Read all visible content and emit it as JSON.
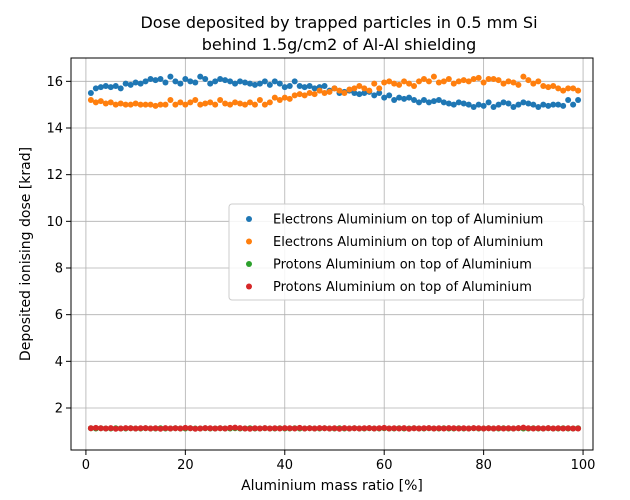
{
  "chart_data": {
    "type": "scatter",
    "title": [
      "Dose deposited by trapped particles in 0.5 mm Si",
      "behind 1.5g/cm2 of Al-Al shielding"
    ],
    "xlabel": "Aluminium mass ratio [%]",
    "ylabel": "Deposited ionising dose [krad]",
    "xlim": [
      -3,
      102
    ],
    "ylim": [
      0.2,
      17
    ],
    "xticks": [
      "0",
      "20",
      "40",
      "60",
      "80",
      "100"
    ],
    "yticks": [
      "2",
      "4",
      "6",
      "8",
      "10",
      "12",
      "14",
      "16"
    ],
    "grid": true,
    "legend_position": "center-right",
    "x": [
      1,
      2,
      3,
      4,
      5,
      6,
      7,
      8,
      9,
      10,
      11,
      12,
      13,
      14,
      15,
      16,
      17,
      18,
      19,
      20,
      21,
      22,
      23,
      24,
      25,
      26,
      27,
      28,
      29,
      30,
      31,
      32,
      33,
      34,
      35,
      36,
      37,
      38,
      39,
      40,
      41,
      42,
      43,
      44,
      45,
      46,
      47,
      48,
      49,
      50,
      51,
      52,
      53,
      54,
      55,
      56,
      57,
      58,
      59,
      60,
      61,
      62,
      63,
      64,
      65,
      66,
      67,
      68,
      69,
      70,
      71,
      72,
      73,
      74,
      75,
      76,
      77,
      78,
      79,
      80,
      81,
      82,
      83,
      84,
      85,
      86,
      87,
      88,
      89,
      90,
      91,
      92,
      93,
      94,
      95,
      96,
      97,
      98,
      99
    ],
    "series": [
      {
        "name": "Electrons Aluminium on top of Aluminium",
        "color": "#1f77b4",
        "values": [
          15.5,
          15.7,
          15.75,
          15.8,
          15.75,
          15.8,
          15.7,
          15.9,
          15.85,
          15.95,
          15.9,
          16.0,
          16.1,
          16.05,
          16.1,
          15.95,
          16.2,
          16.0,
          15.9,
          16.1,
          16.0,
          15.95,
          16.2,
          16.1,
          15.9,
          16.0,
          16.1,
          16.05,
          16.0,
          15.9,
          16.0,
          15.95,
          15.9,
          15.85,
          15.9,
          16.0,
          15.85,
          16.0,
          15.9,
          15.75,
          15.8,
          16.0,
          15.8,
          15.75,
          15.8,
          15.7,
          15.75,
          15.8,
          15.6,
          15.7,
          15.5,
          15.55,
          15.6,
          15.5,
          15.45,
          15.5,
          15.55,
          15.4,
          15.5,
          15.3,
          15.4,
          15.2,
          15.3,
          15.25,
          15.3,
          15.2,
          15.1,
          15.2,
          15.1,
          15.15,
          15.2,
          15.1,
          15.05,
          15.0,
          15.1,
          15.05,
          15.0,
          14.9,
          15.0,
          14.95,
          15.1,
          14.9,
          15.0,
          15.1,
          15.05,
          14.9,
          15.0,
          15.1,
          15.05,
          15.0,
          14.9,
          15.0,
          14.95,
          15.0,
          15.0,
          14.95,
          15.2,
          15.0,
          15.2
        ]
      },
      {
        "name": "Electrons Aluminium on top of Aluminium",
        "color": "#ff7f0e",
        "values": [
          15.2,
          15.1,
          15.15,
          15.05,
          15.1,
          15.0,
          15.05,
          15.0,
          15.0,
          15.05,
          15.0,
          15.0,
          15.0,
          14.95,
          15.0,
          15.0,
          15.2,
          15.0,
          15.1,
          15.0,
          15.1,
          15.2,
          15.0,
          15.05,
          15.1,
          15.0,
          15.2,
          15.05,
          15.0,
          15.1,
          15.05,
          15.0,
          15.1,
          15.0,
          15.2,
          15.0,
          15.1,
          15.3,
          15.2,
          15.3,
          15.25,
          15.4,
          15.45,
          15.4,
          15.5,
          15.45,
          15.6,
          15.5,
          15.55,
          15.7,
          15.6,
          15.5,
          15.65,
          15.7,
          15.8,
          15.7,
          15.6,
          15.9,
          15.7,
          15.95,
          16.0,
          15.9,
          15.85,
          16.0,
          15.9,
          15.8,
          16.0,
          16.1,
          16.0,
          16.2,
          15.95,
          16.0,
          16.1,
          15.9,
          16.0,
          16.05,
          16.0,
          16.1,
          16.15,
          15.95,
          16.1,
          16.1,
          16.05,
          15.9,
          16.0,
          15.95,
          15.85,
          16.2,
          16.05,
          15.9,
          16.0,
          15.8,
          15.75,
          15.8,
          15.7,
          15.6,
          15.7,
          15.7,
          15.6
        ]
      },
      {
        "name": "Protons Aluminium on top of Aluminium",
        "color": "#2ca02c",
        "values": [
          1.13,
          1.12,
          1.13,
          1.12,
          1.12,
          1.13,
          1.12,
          1.12,
          1.13,
          1.12,
          1.12,
          1.13,
          1.12,
          1.12,
          1.13,
          1.12,
          1.12,
          1.13,
          1.12,
          1.12,
          1.13,
          1.12,
          1.12,
          1.13,
          1.12,
          1.12,
          1.13,
          1.12,
          1.12,
          1.13,
          1.12,
          1.12,
          1.13,
          1.12,
          1.12,
          1.13,
          1.12,
          1.12,
          1.13,
          1.12,
          1.12,
          1.13,
          1.12,
          1.12,
          1.13,
          1.12,
          1.12,
          1.13,
          1.12,
          1.12,
          1.13,
          1.12,
          1.12,
          1.13,
          1.12,
          1.12,
          1.13,
          1.12,
          1.12,
          1.13,
          1.12,
          1.12,
          1.13,
          1.12,
          1.12,
          1.13,
          1.12,
          1.12,
          1.13,
          1.12,
          1.12,
          1.13,
          1.12,
          1.12,
          1.13,
          1.12,
          1.12,
          1.13,
          1.12,
          1.12,
          1.13,
          1.12,
          1.12,
          1.13,
          1.12,
          1.12,
          1.13,
          1.12,
          1.12,
          1.13,
          1.12,
          1.12,
          1.13,
          1.12,
          1.12,
          1.13,
          1.12,
          1.12,
          1.13
        ]
      },
      {
        "name": "Protons Aluminium on top of Aluminium",
        "color": "#d62728",
        "values": [
          1.13,
          1.15,
          1.13,
          1.12,
          1.14,
          1.11,
          1.12,
          1.14,
          1.13,
          1.12,
          1.13,
          1.14,
          1.12,
          1.13,
          1.11,
          1.14,
          1.12,
          1.13,
          1.12,
          1.15,
          1.13,
          1.11,
          1.12,
          1.14,
          1.13,
          1.12,
          1.13,
          1.12,
          1.15,
          1.16,
          1.14,
          1.12,
          1.11,
          1.13,
          1.12,
          1.14,
          1.12,
          1.13,
          1.12,
          1.14,
          1.13,
          1.12,
          1.15,
          1.12,
          1.13,
          1.12,
          1.14,
          1.13,
          1.12,
          1.13,
          1.11,
          1.14,
          1.12,
          1.13,
          1.12,
          1.13,
          1.14,
          1.12,
          1.13,
          1.15,
          1.12,
          1.13,
          1.12,
          1.14,
          1.11,
          1.13,
          1.12,
          1.13,
          1.14,
          1.12,
          1.13,
          1.12,
          1.14,
          1.13,
          1.12,
          1.13,
          1.12,
          1.14,
          1.13,
          1.12,
          1.13,
          1.12,
          1.14,
          1.12,
          1.13,
          1.12,
          1.14,
          1.16,
          1.13,
          1.12,
          1.13,
          1.12,
          1.14,
          1.12,
          1.13,
          1.12,
          1.13,
          1.12,
          1.12
        ]
      }
    ]
  }
}
